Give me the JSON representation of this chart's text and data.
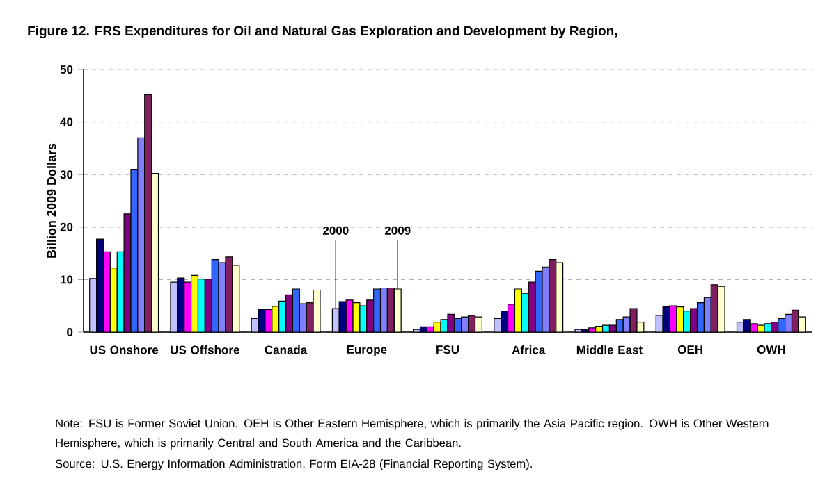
{
  "chart_data": {
    "type": "bar",
    "title": "Figure 12. FRS Expenditures for Oil and Natural Gas Exploration and Development by Region,",
    "ylabel": "Billion 2009 Dollars",
    "categories": [
      "US Onshore",
      "US Offshore",
      "Canada",
      "Europe",
      "FSU",
      "Africa",
      "Middle East",
      "OEH",
      "OWH"
    ],
    "series": [
      {
        "name": "2000",
        "color": "#c0c0ff",
        "values": [
          10.2,
          9.5,
          2.6,
          4.5,
          0.5,
          2.6,
          0.5,
          3.2,
          1.9
        ]
      },
      {
        "color": "#000080",
        "values": [
          17.7,
          10.3,
          4.3,
          5.8,
          1.0,
          4.0,
          0.5,
          4.8,
          2.4
        ]
      },
      {
        "color": "#ff00ff",
        "values": [
          15.3,
          9.5,
          4.3,
          6.1,
          1.0,
          5.3,
          0.8,
          5.0,
          1.6
        ]
      },
      {
        "color": "#ffff00",
        "values": [
          12.2,
          10.8,
          4.9,
          5.6,
          1.9,
          8.2,
          1.1,
          4.8,
          1.3
        ]
      },
      {
        "color": "#00ffff",
        "values": [
          15.3,
          10.1,
          5.9,
          5.0,
          2.4,
          7.4,
          1.3,
          4.0,
          1.6
        ]
      },
      {
        "color": "#800080",
        "values": [
          22.5,
          10.1,
          7.1,
          6.1,
          3.4,
          9.5,
          1.3,
          4.5,
          1.9
        ]
      },
      {
        "color": "#3366ff",
        "values": [
          31.0,
          13.8,
          8.2,
          8.2,
          2.6,
          11.6,
          2.4,
          5.6,
          2.6
        ]
      },
      {
        "color": "#8080ff",
        "values": [
          37.0,
          13.2,
          5.4,
          8.4,
          2.9,
          12.4,
          2.9,
          6.6,
          3.4
        ]
      },
      {
        "color": "#802060",
        "values": [
          45.2,
          14.3,
          5.6,
          8.4,
          3.2,
          13.8,
          4.5,
          9.0,
          4.2
        ]
      },
      {
        "name": "2009",
        "color": "#ffffcc",
        "values": [
          30.2,
          12.7,
          8.0,
          8.2,
          2.9,
          13.2,
          1.9,
          8.7,
          2.9
        ]
      }
    ],
    "ylim": [
      0,
      50
    ],
    "yticks": [
      0,
      10,
      20,
      30,
      40,
      50
    ],
    "grid": "y",
    "annotations": [
      "Note:  FSU is Former Soviet Union. OEH is Other Eastern Hemisphere, which is primarily the Asia Pacific region. OWH is Other Western Hemisphere, which is primarily Central and South America and the Caribbean.",
      "Source: U.S. Energy Information Administration, Form EIA-28 (Financial Reporting System)."
    ]
  }
}
